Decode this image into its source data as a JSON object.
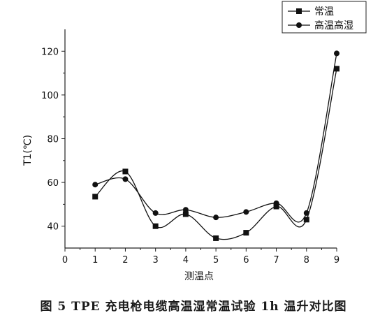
{
  "chart_data": {
    "type": "line",
    "xlabel": "测温点",
    "ylabel": "T1(℃)",
    "xlim": [
      0,
      9
    ],
    "ylim": [
      30,
      130
    ],
    "xticks": [
      0,
      1,
      2,
      3,
      4,
      5,
      6,
      7,
      8,
      9
    ],
    "yticks": [
      40,
      60,
      80,
      100,
      120
    ],
    "grid": false,
    "legend_position": "top-right",
    "x": [
      1,
      2,
      3,
      4,
      5,
      6,
      7,
      8,
      9
    ],
    "series": [
      {
        "name": "常温",
        "marker": "square",
        "values": [
          53.5,
          65,
          40,
          45.5,
          34.5,
          37,
          49,
          43,
          112
        ]
      },
      {
        "name": "高温高湿",
        "marker": "circle",
        "values": [
          59,
          61.5,
          46,
          47.5,
          44,
          46.5,
          50.5,
          46,
          119
        ]
      }
    ]
  },
  "caption": "图 5 TPE 充电枪电缆高温湿常温试验 1h 温升对比图"
}
